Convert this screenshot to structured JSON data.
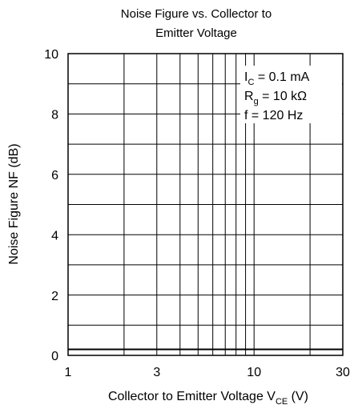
{
  "chart_data": {
    "type": "line",
    "title": [
      "Noise Figure vs. Collector to",
      "Emitter Voltage"
    ],
    "x_label": [
      "Collector to Emitter Voltage  V",
      "CE",
      "  (V)"
    ],
    "y_label": "Noise Figure  NF  (dB)",
    "annotations": [
      [
        "I",
        "C",
        " = 0.1 mA"
      ],
      [
        "R",
        "g",
        " = 10 kΩ"
      ],
      [
        "f = 120 Hz"
      ]
    ],
    "x": [
      1,
      30
    ],
    "series": [
      {
        "color": "#000000",
        "values": [
          0.2,
          0.2
        ]
      }
    ],
    "x_scale": "log",
    "xlim": [
      1,
      30
    ],
    "xticks": [
      1,
      3,
      10,
      30
    ],
    "xgrid": [
      1,
      2,
      3,
      4,
      5,
      6,
      7,
      8,
      9,
      10,
      20,
      30
    ],
    "ylim": [
      0,
      10
    ],
    "yticks": [
      0,
      2,
      4,
      6,
      8,
      10
    ],
    "ygrid": [
      0,
      1,
      2,
      3,
      4,
      5,
      6,
      7,
      8,
      9,
      10
    ],
    "grid": true
  }
}
